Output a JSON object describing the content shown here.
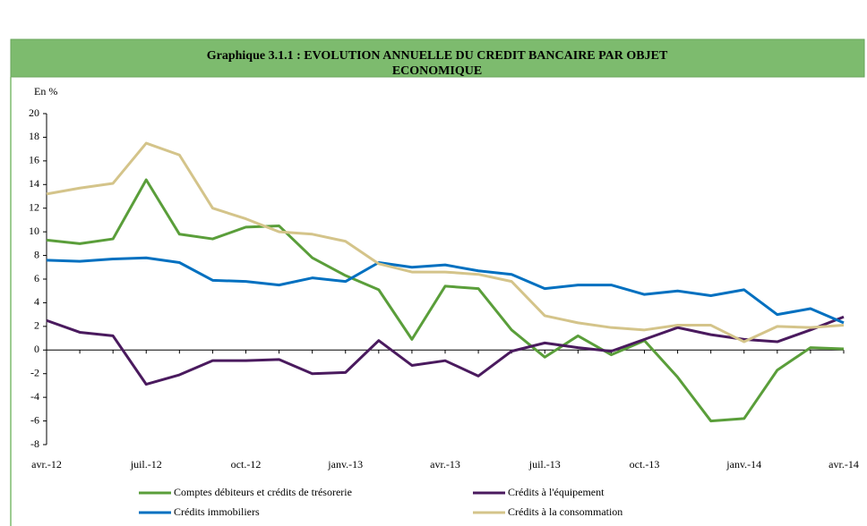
{
  "chart_data": {
    "type": "line",
    "title_lines": [
      "Graphique 3.1.1 : EVOLUTION ANNUELLE DU CREDIT BANCAIRE PAR OBJET",
      "ECONOMIQUE"
    ],
    "y_label": "En %",
    "categories": [
      "avr.-12",
      null,
      null,
      "juil.-12",
      null,
      null,
      "oct.-12",
      null,
      null,
      "janv.-13",
      null,
      null,
      "avr.-13",
      null,
      null,
      "juil.-13",
      null,
      null,
      "oct.-13",
      null,
      null,
      "janv.-14",
      null,
      null,
      "avr.-14"
    ],
    "series": [
      {
        "name": "Comptes débiteurs et crédits de trésorerie",
        "color": "#5a9e3a",
        "values": [
          9.3,
          9.0,
          9.4,
          14.4,
          9.8,
          9.4,
          10.4,
          10.5,
          7.8,
          6.3,
          5.1,
          0.9,
          5.4,
          5.2,
          1.7,
          -0.6,
          1.2,
          -0.4,
          0.8,
          -2.3,
          -6.0,
          -5.8,
          -1.7,
          0.2,
          0.1
        ]
      },
      {
        "name": "Crédits à l'équipement",
        "color": "#4a1a5e",
        "values": [
          2.5,
          1.5,
          1.2,
          -2.9,
          -2.1,
          -0.9,
          -0.9,
          -0.8,
          -2.0,
          -1.9,
          0.8,
          -1.3,
          -0.9,
          -2.2,
          -0.1,
          0.6,
          0.2,
          -0.1,
          0.9,
          1.9,
          1.3,
          0.9,
          0.7,
          1.7,
          2.8
        ]
      },
      {
        "name": "Crédits immobiliers",
        "color": "#0070c0",
        "values": [
          7.6,
          7.5,
          7.7,
          7.8,
          7.4,
          5.9,
          5.8,
          5.5,
          6.1,
          5.8,
          7.4,
          7.0,
          7.2,
          6.7,
          6.4,
          5.2,
          5.5,
          5.5,
          4.7,
          5.0,
          4.6,
          5.1,
          3.0,
          3.5,
          2.3
        ]
      },
      {
        "name": "Crédits à la consommation",
        "color": "#d4c48a",
        "values": [
          13.2,
          13.7,
          14.1,
          17.5,
          16.5,
          12.0,
          11.1,
          10.0,
          9.8,
          9.2,
          7.3,
          6.6,
          6.6,
          6.4,
          5.8,
          2.9,
          2.3,
          1.9,
          1.7,
          2.1,
          2.1,
          0.7,
          2.0,
          1.9,
          2.1
        ]
      }
    ],
    "ylim": [
      -8,
      20
    ],
    "yticks": [
      -8,
      -6,
      -4,
      -2,
      0,
      2,
      4,
      6,
      8,
      10,
      12,
      14,
      16,
      18,
      20
    ],
    "grid": false
  }
}
